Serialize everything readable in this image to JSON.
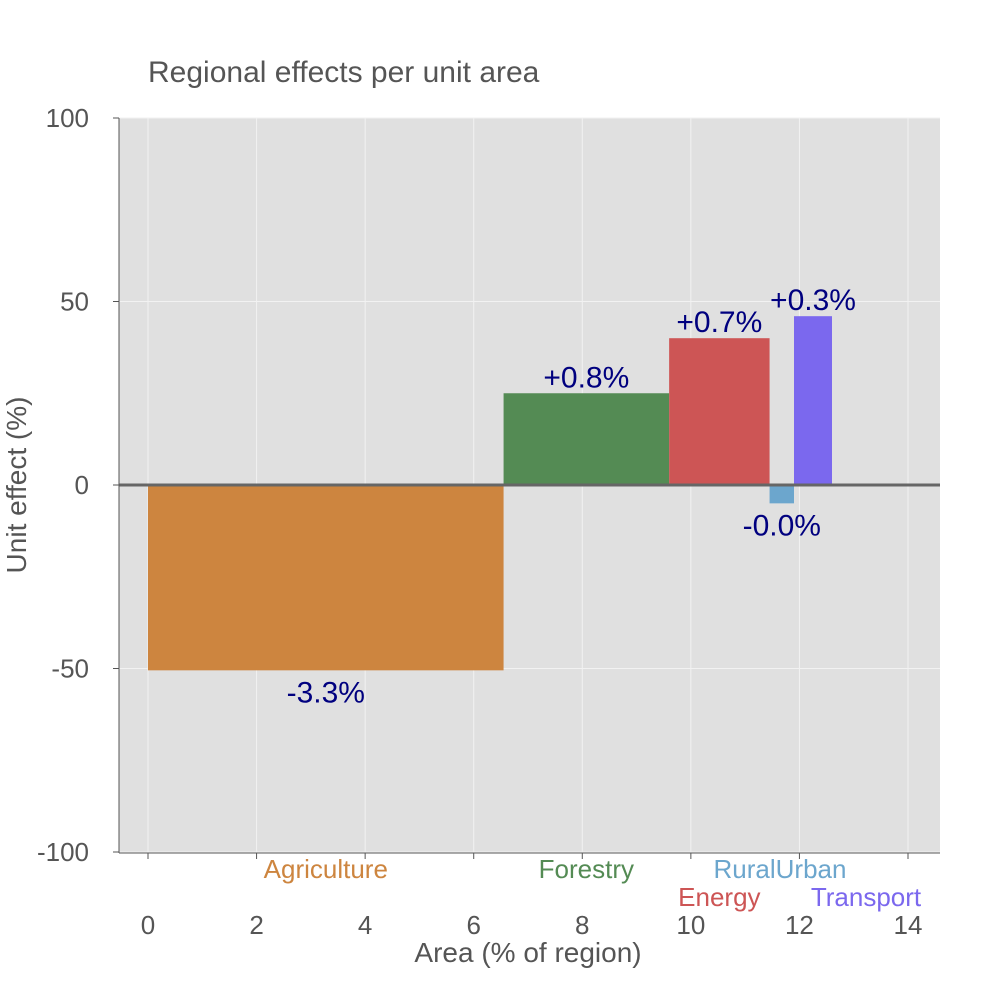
{
  "chart_data": {
    "type": "bar",
    "title": "Regional effects per unit area",
    "xlabel": "Area (% of region)",
    "ylabel": "Unit effect (%)",
    "xlim": [
      -0.5,
      14.6
    ],
    "ylim": [
      -100,
      100
    ],
    "xticks": [
      0,
      2,
      4,
      6,
      8,
      10,
      12,
      14
    ],
    "yticks": [
      100,
      50,
      0,
      -50,
      -100
    ],
    "grid": true,
    "background": "#e0e0e0",
    "bars": [
      {
        "category": "Agriculture",
        "x0": 0.0,
        "x1": 6.55,
        "value": -50.5,
        "label": "-3.3%",
        "color": "#cd853f"
      },
      {
        "category": "Forestry",
        "x0": 6.55,
        "x1": 9.6,
        "value": 25.0,
        "label": "+0.8%",
        "color": "#548b54"
      },
      {
        "category": "Energy",
        "x0": 9.6,
        "x1": 11.45,
        "value": 40.0,
        "label": "+0.7%",
        "color": "#cd5555"
      },
      {
        "category": "RuralUrban",
        "x0": 11.45,
        "x1": 11.9,
        "value": -5.0,
        "label": "-0.0%",
        "color": "#6ca6cd"
      },
      {
        "category": "Transport",
        "x0": 11.9,
        "x1": 12.6,
        "value": 46.0,
        "label": "+0.3%",
        "color": "#7b68ee"
      }
    ]
  }
}
